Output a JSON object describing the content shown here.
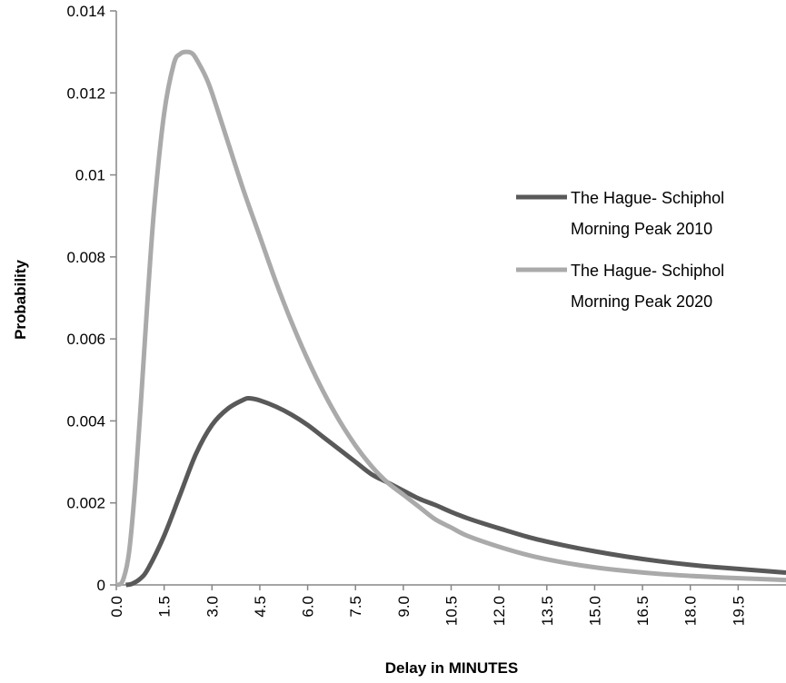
{
  "chart_data": {
    "type": "line",
    "xlabel": "Delay in MINUTES",
    "ylabel": "Probability",
    "ylim": [
      0,
      0.014
    ],
    "xlim": [
      0,
      21
    ],
    "y_ticks": [
      "0",
      "0.002",
      "0.004",
      "0.006",
      "0.008",
      "0.01",
      "0.012",
      "0.014"
    ],
    "x_ticks": [
      "0.0",
      "1.5",
      "3.0",
      "4.5",
      "6.0",
      "7.5",
      "9.0",
      "10.5",
      "12.0",
      "13.5",
      "15.0",
      "16.5",
      "18.0",
      "19.5"
    ],
    "grid": false,
    "legend_position": "right",
    "series": [
      {
        "name_line1": "The Hague- Schiphol",
        "name_line2": "Morning Peak 2010",
        "color": "#595959",
        "x": [
          0.3,
          0.5,
          0.75,
          1.0,
          1.5,
          2.0,
          2.5,
          3.0,
          3.5,
          4.0,
          4.2,
          4.5,
          5.0,
          5.5,
          6.0,
          6.5,
          7.0,
          7.5,
          8.0,
          8.5,
          9.0,
          9.5,
          10.0,
          10.5,
          11.0,
          11.5,
          12.0,
          13.0,
          14.0,
          15.0,
          16.0,
          17.0,
          18.0,
          19.0,
          20.0,
          21.0
        ],
        "y": [
          0.0,
          3e-05,
          0.00015,
          0.0004,
          0.0012,
          0.0022,
          0.0032,
          0.0039,
          0.0043,
          0.00452,
          0.00455,
          0.0045,
          0.00435,
          0.00415,
          0.0039,
          0.0036,
          0.0033,
          0.003,
          0.0027,
          0.0025,
          0.0023,
          0.0021,
          0.00195,
          0.00178,
          0.00163,
          0.0015,
          0.00138,
          0.00115,
          0.00097,
          0.00082,
          0.00069,
          0.00058,
          0.00049,
          0.00042,
          0.00036,
          0.0003
        ]
      },
      {
        "name_line1": "The Hague- Schiphol",
        "name_line2": "Morning Peak 2020",
        "color": "#aaaaaa",
        "x": [
          0.0,
          0.2,
          0.4,
          0.6,
          0.8,
          1.0,
          1.2,
          1.5,
          1.8,
          2.0,
          2.2,
          2.4,
          2.6,
          2.8,
          3.0,
          3.5,
          4.0,
          4.5,
          5.0,
          5.5,
          6.0,
          6.5,
          7.0,
          7.5,
          8.0,
          8.5,
          9.0,
          9.5,
          10.0,
          10.5,
          11.0,
          12.0,
          13.0,
          14.0,
          15.0,
          16.0,
          17.0,
          18.0,
          19.0,
          20.0,
          21.0
        ],
        "y": [
          0.0,
          0.0001,
          0.0008,
          0.0025,
          0.0048,
          0.0072,
          0.0093,
          0.0115,
          0.0127,
          0.01295,
          0.013,
          0.01295,
          0.0127,
          0.0124,
          0.012,
          0.0108,
          0.0096,
          0.0085,
          0.0074,
          0.0064,
          0.0055,
          0.0047,
          0.004,
          0.0034,
          0.0029,
          0.0025,
          0.0022,
          0.0019,
          0.0016,
          0.0014,
          0.0012,
          0.00093,
          0.00071,
          0.00055,
          0.00043,
          0.00034,
          0.00027,
          0.00022,
          0.00018,
          0.00015,
          0.00012
        ]
      }
    ]
  }
}
